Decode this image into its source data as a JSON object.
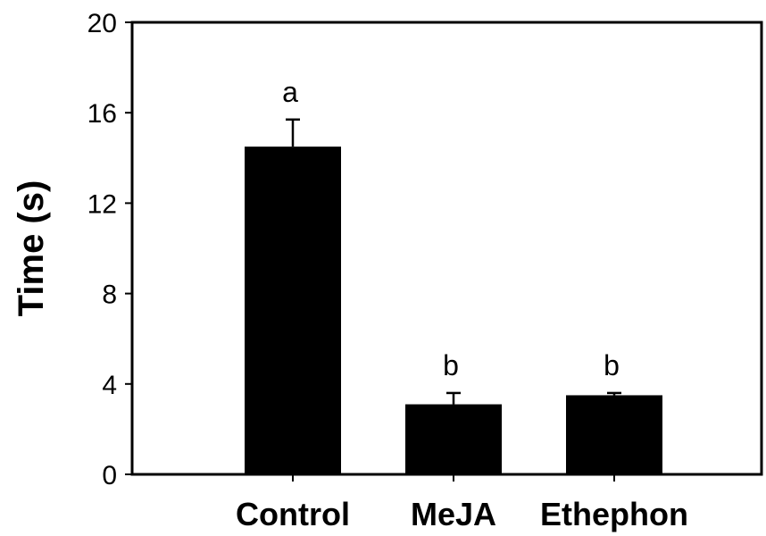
{
  "chart_data": {
    "type": "bar",
    "title": "",
    "xlabel": "",
    "ylabel": "Time (s)",
    "ylim": [
      0,
      20
    ],
    "yticks": [
      0,
      4,
      8,
      12,
      16,
      20
    ],
    "categories": [
      "Control",
      "MeJA",
      "Ethephon"
    ],
    "values": [
      14.5,
      3.1,
      3.5
    ],
    "errors": [
      1.2,
      0.5,
      0.1
    ],
    "significance_letters": [
      "a",
      "b",
      "b"
    ],
    "grid": false,
    "legend": "none",
    "bar_color": "#000000"
  }
}
